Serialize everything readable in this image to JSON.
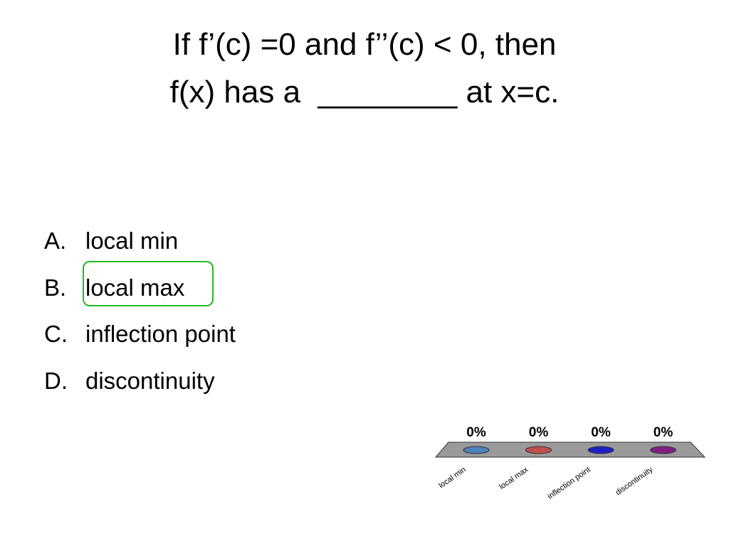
{
  "title": [
    "If f’(c) =0 and f’’(c) < 0, then",
    "f(x) has a  ________ at x=c."
  ],
  "options": [
    {
      "letter": "A.",
      "text": "local min"
    },
    {
      "letter": "B.",
      "text": "local max"
    },
    {
      "letter": "C.",
      "text": "inflection point"
    },
    {
      "letter": "D.",
      "text": "discontinuity"
    }
  ],
  "chart_data": {
    "type": "bar",
    "categories": [
      "local min",
      "local max",
      "inflection point",
      "discontinuity"
    ],
    "values": [
      0,
      0,
      0,
      0
    ],
    "value_labels": [
      "0%",
      "0%",
      "0%",
      "0%"
    ],
    "colors": [
      "#4f81bd",
      "#c0504d",
      "#1f1fc8",
      "#7f1f7f"
    ]
  }
}
